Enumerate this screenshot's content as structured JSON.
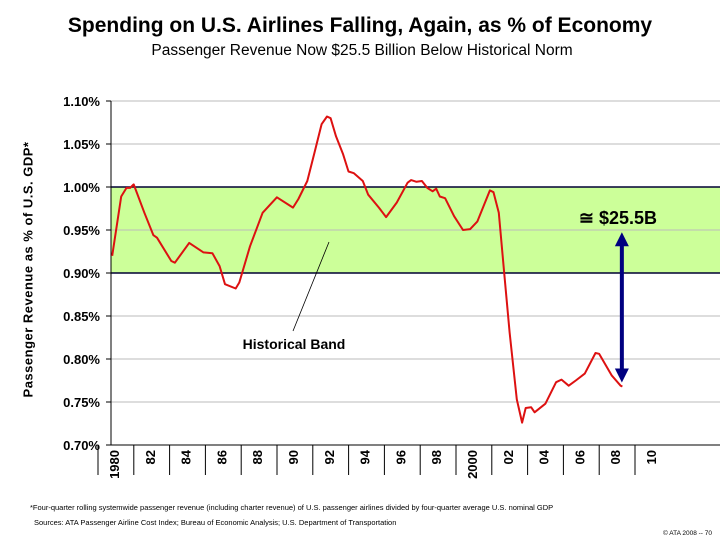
{
  "chart_data": {
    "type": "line",
    "title": "Spending on U.S. Airlines Falling, Again, as % of Economy",
    "subtitle": "Passenger Revenue Now $25.5 Billion Below Historical Norm",
    "ylabel": "Passenger Revenue as % of U.S. GDP*",
    "xlabel": "",
    "ylim": [
      0.7,
      1.1
    ],
    "xlim": [
      1980,
      2010
    ],
    "y_ticks": [
      "1.10%",
      "1.05%",
      "1.00%",
      "0.95%",
      "0.90%",
      "0.85%",
      "0.80%",
      "0.75%",
      "0.70%"
    ],
    "y_tick_values": [
      1.1,
      1.05,
      1.0,
      0.95,
      0.9,
      0.85,
      0.8,
      0.75,
      0.7
    ],
    "x_ticks": [
      "1980",
      "82",
      "84",
      "86",
      "88",
      "90",
      "92",
      "94",
      "96",
      "98",
      "2000",
      "02",
      "04",
      "06",
      "08",
      "10"
    ],
    "x_tick_values": [
      1980,
      1982,
      1984,
      1986,
      1988,
      1990,
      1992,
      1994,
      1996,
      1998,
      2000,
      2002,
      2004,
      2006,
      2008,
      2010
    ],
    "grid": true,
    "series": [
      {
        "color": "#dd1111",
        "x": [
          1979.9,
          1980.4,
          1980.7,
          1980.9,
          1981.1,
          1981.7,
          1982.2,
          1982.4,
          1983.2,
          1983.4,
          1984.2,
          1985.0,
          1985.5,
          1985.9,
          1986.2,
          1986.8,
          1987.0,
          1987.6,
          1988.3,
          1989.1,
          1990.0,
          1990.3,
          1990.8,
          1991.2,
          1991.6,
          1991.9,
          1992.1,
          1992.4,
          1992.8,
          1993.1,
          1993.4,
          1993.9,
          1994.2,
          1994.8,
          1995.2,
          1995.8,
          1996.4,
          1996.6,
          1996.9,
          1997.2,
          1997.5,
          1997.8,
          1998.0,
          1998.2,
          1998.5,
          1999.0,
          1999.5,
          1999.9,
          2000.3,
          2001.0,
          2001.2,
          2001.5,
          2001.8,
          2002.1,
          2002.5,
          2002.8,
          2003.0,
          2003.3,
          2003.5,
          2004.1,
          2004.7,
          2005.0,
          2005.4,
          2005.8,
          2006.3,
          2006.9,
          2007.1,
          2007.8,
          2008.3,
          2008.4
        ],
        "y": [
          0.92,
          0.989,
          0.999,
          0.999,
          1.003,
          0.97,
          0.944,
          0.941,
          0.914,
          0.912,
          0.935,
          0.924,
          0.923,
          0.908,
          0.887,
          0.882,
          0.889,
          0.931,
          0.97,
          0.988,
          0.976,
          0.986,
          1.007,
          1.04,
          1.073,
          1.082,
          1.08,
          1.059,
          1.038,
          1.018,
          1.016,
          1.007,
          0.991,
          0.976,
          0.965,
          0.982,
          1.005,
          1.008,
          1.006,
          1.007,
          0.999,
          0.995,
          0.998,
          0.989,
          0.987,
          0.966,
          0.95,
          0.951,
          0.96,
          0.996,
          0.994,
          0.97,
          0.9,
          0.831,
          0.753,
          0.726,
          0.743,
          0.744,
          0.738,
          0.748,
          0.773,
          0.776,
          0.769,
          0.775,
          0.783,
          0.807,
          0.806,
          0.781,
          0.769,
          0.768
        ]
      }
    ],
    "band": {
      "low": 0.9,
      "high": 1.0,
      "fill": "#ccff99",
      "line_color": "#000033",
      "label": "Historical Band"
    },
    "gap_arrow": {
      "x": 2008.4,
      "from": 0.775,
      "to": 0.945,
      "color": "#000080",
      "label": "≅ $25.5B"
    }
  },
  "footnotes": {
    "definition": "*Four-quarter rolling systemwide passenger revenue (including charter revenue) of U.S. passenger airlines divided by four-quarter average U.S. nominal GDP",
    "sources": "Sources: ATA Passenger Airline Cost Index; Bureau of Economic Analysis; U.S. Department of Transportation",
    "copyright": "© ATA 2008 -- 70"
  }
}
